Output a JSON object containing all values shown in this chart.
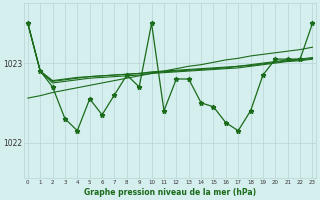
{
  "xlabel": "Graphe pression niveau de la mer (hPa)",
  "hours": [
    0,
    1,
    2,
    3,
    4,
    5,
    6,
    7,
    8,
    9,
    10,
    11,
    12,
    13,
    14,
    15,
    16,
    17,
    18,
    19,
    20,
    21,
    22,
    23
  ],
  "series_main": [
    1023.5,
    1022.9,
    1022.7,
    1022.3,
    1022.15,
    1022.55,
    1022.35,
    1022.6,
    1022.85,
    1022.7,
    1023.5,
    1022.4,
    1022.8,
    1022.8,
    1022.5,
    1022.45,
    1022.25,
    1022.15,
    1022.4,
    1022.85,
    1023.05,
    1023.05,
    1023.05,
    1023.5
  ],
  "series_flat1": [
    1023.5,
    1022.9,
    1022.75,
    1022.77,
    1022.79,
    1022.81,
    1022.82,
    1022.83,
    1022.84,
    1022.85,
    1022.87,
    1022.88,
    1022.89,
    1022.9,
    1022.91,
    1022.92,
    1022.93,
    1022.94,
    1022.96,
    1022.98,
    1023.0,
    1023.02,
    1023.03,
    1023.05
  ],
  "series_flat2": [
    1023.5,
    1022.9,
    1022.77,
    1022.79,
    1022.81,
    1022.83,
    1022.84,
    1022.85,
    1022.86,
    1022.87,
    1022.89,
    1022.9,
    1022.91,
    1022.92,
    1022.93,
    1022.94,
    1022.95,
    1022.96,
    1022.97,
    1022.99,
    1023.01,
    1023.03,
    1023.04,
    1023.06
  ],
  "series_flat3": [
    1023.5,
    1022.9,
    1022.78,
    1022.8,
    1022.82,
    1022.83,
    1022.84,
    1022.85,
    1022.86,
    1022.87,
    1022.88,
    1022.89,
    1022.9,
    1022.91,
    1022.92,
    1022.93,
    1022.94,
    1022.96,
    1022.98,
    1023.0,
    1023.02,
    1023.04,
    1023.05,
    1023.07
  ],
  "series_trend": [
    1022.56,
    1022.59,
    1022.63,
    1022.66,
    1022.69,
    1022.72,
    1022.75,
    1022.78,
    1022.81,
    1022.84,
    1022.87,
    1022.9,
    1022.93,
    1022.96,
    1022.98,
    1023.01,
    1023.04,
    1023.06,
    1023.09,
    1023.11,
    1023.13,
    1023.15,
    1023.17,
    1023.2
  ],
  "bg_color": "#d5eeee",
  "grid_color": "#b8d4d4",
  "line_color": "#1a6b1a",
  "ylim_min": 1021.55,
  "ylim_max": 1023.75,
  "yticks": [
    1022,
    1023
  ],
  "xlim_min": -0.3,
  "xlim_max": 23.3,
  "figsize": [
    3.2,
    2.0
  ],
  "dpi": 100
}
